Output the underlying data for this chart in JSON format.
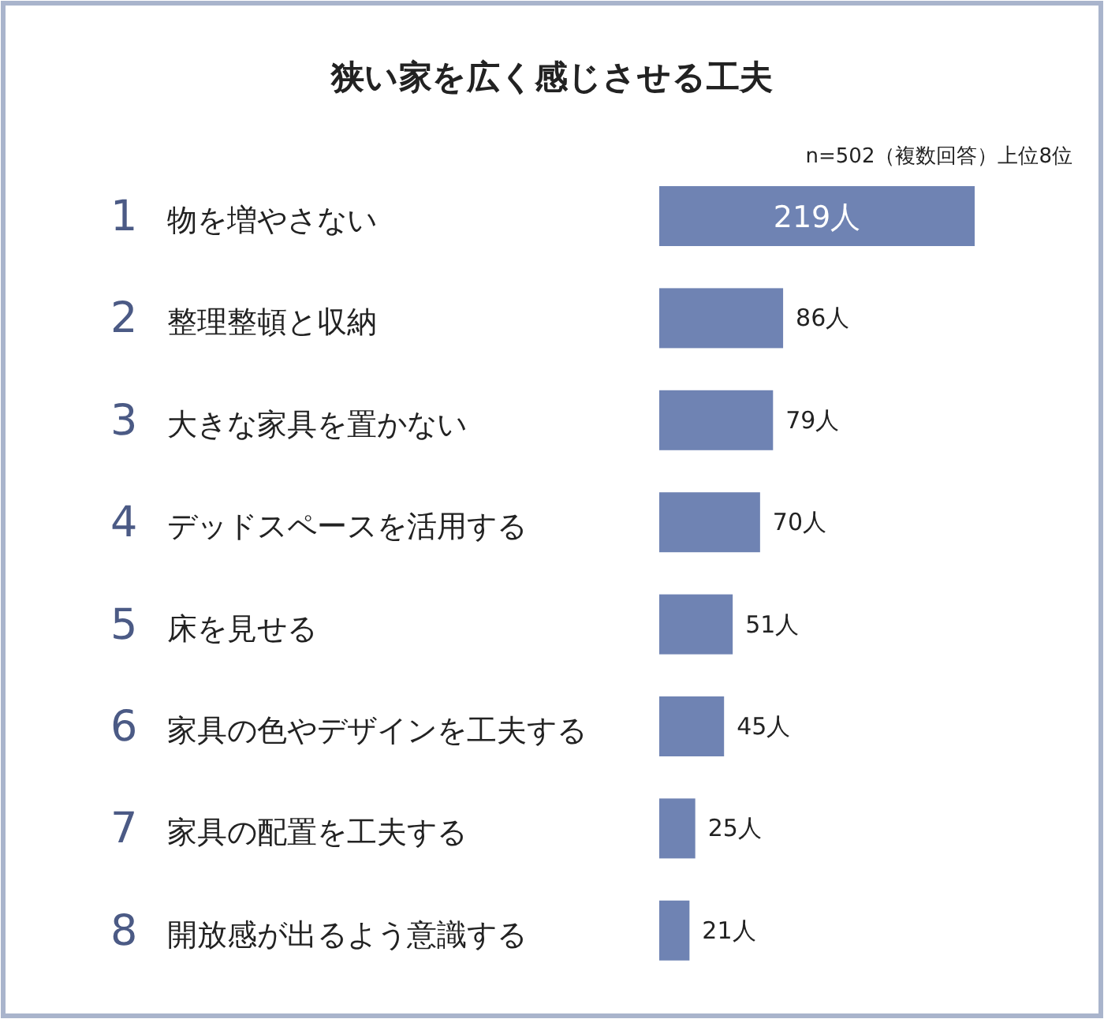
{
  "chart_data": {
    "type": "bar",
    "orientation": "horizontal",
    "title": "狭い家を広く感じさせる工夫",
    "annotations": [
      "n=502（複数回答）上位8位"
    ],
    "categories": [
      "1 物を増やさない",
      "2 整理整頓と収納",
      "3 大きな家具を置かない",
      "4 デッドスペースを活用する",
      "5 床を見せる",
      "6 家具の色やデザインを工夫する",
      "7 家具の配置を工夫する",
      "8 開放感が出るよう意識する"
    ],
    "values": [
      219,
      86,
      79,
      70,
      51,
      45,
      25,
      21
    ],
    "value_labels": [
      "219人",
      "86人",
      "79人",
      "70人",
      "51人",
      "45人",
      "25人",
      "21人"
    ],
    "color": "#6f83b3"
  }
}
